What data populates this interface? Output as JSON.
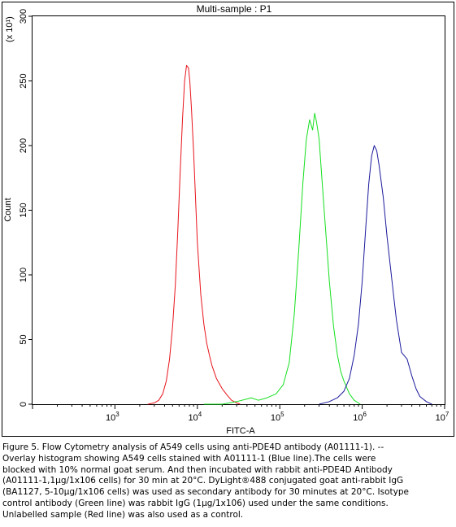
{
  "chart_data": {
    "type": "line",
    "title": "Multi-sample : P1",
    "xlabel": "FITC-A",
    "ylabel": "Count",
    "y_multiplier_label": "(x 10¹)",
    "x_scale": "log",
    "xlim": [
      100,
      10000000
    ],
    "ylim": [
      0,
      300
    ],
    "x_tick_labels": [
      {
        "base": "10",
        "exp": "3",
        "value": 1000
      },
      {
        "base": "10",
        "exp": "4",
        "value": 10000
      },
      {
        "base": "10",
        "exp": "5",
        "value": 100000
      },
      {
        "base": "10",
        "exp": "6",
        "value": 1000000
      },
      {
        "base": "10",
        "exp": "7",
        "value": 10000000
      }
    ],
    "y_ticks": [
      0,
      50,
      100,
      150,
      200,
      250,
      300
    ],
    "grid": false,
    "series": [
      {
        "color": "#e8141c",
        "x": [
          2500,
          3000,
          3400,
          3800,
          4200,
          4600,
          5000,
          5400,
          5800,
          6200,
          6600,
          7000,
          7400,
          7800,
          8100,
          8500,
          9000,
          9500,
          10000,
          11000,
          12000,
          13000,
          14000,
          15000,
          17000,
          20000,
          23000,
          26000,
          30000,
          33000
        ],
        "y": [
          0,
          1,
          3,
          8,
          18,
          35,
          60,
          92,
          135,
          180,
          220,
          250,
          262,
          260,
          250,
          228,
          195,
          160,
          125,
          85,
          62,
          47,
          38,
          30,
          20,
          12,
          7,
          3,
          1,
          0
        ]
      },
      {
        "color": "#15e01e",
        "x": [
          12000,
          20000,
          30000,
          40000,
          45000,
          55000,
          70000,
          90000,
          110000,
          130000,
          150000,
          170000,
          190000,
          210000,
          230000,
          250000,
          265000,
          280000,
          300000,
          320000,
          350000,
          400000,
          450000,
          500000,
          550000,
          600000,
          700000,
          800000,
          950000
        ],
        "y": [
          0,
          0,
          2,
          4,
          5,
          3,
          5,
          8,
          15,
          32,
          70,
          120,
          170,
          205,
          220,
          212,
          225,
          218,
          205,
          180,
          145,
          95,
          60,
          38,
          25,
          18,
          8,
          3,
          0
        ]
      },
      {
        "color": "#1b1a9c",
        "x": [
          300000,
          400000,
          500000,
          600000,
          700000,
          800000,
          900000,
          1000000,
          1100000,
          1200000,
          1300000,
          1400000,
          1500000,
          1600000,
          1800000,
          2000000,
          2300000,
          2600000,
          3000000,
          3500000,
          4000000,
          4500000,
          5000000,
          6000000,
          7000000
        ],
        "y": [
          0,
          2,
          5,
          10,
          20,
          38,
          62,
          95,
          135,
          170,
          192,
          200,
          196,
          185,
          160,
          130,
          95,
          65,
          40,
          35,
          22,
          12,
          6,
          2,
          0
        ]
      }
    ]
  },
  "caption": {
    "lines": [
      "Figure 5. Flow Cytometry analysis of A549 cells using anti-PDE4D antibody (A01111-1). --",
      "Overlay histogram showing A549 cells stained with A01111-1 (Blue line).The cells were",
      "blocked with 10% normal goat serum. And then incubated with rabbit anti-PDE4D Antibody",
      "(A01111-1,1μg/1x106 cells) for 30 min at 20°C. DyLight®488 conjugated goat anti-rabbit IgG",
      "(BA1127, 5-10μg/1x106 cells) was used as secondary antibody for 30 minutes at 20°C. Isotype",
      "control antibody (Green line) was rabbit IgG (1μg/1x106) used under the same conditions.",
      "Unlabelled sample (Red line) was also used as a control."
    ]
  }
}
